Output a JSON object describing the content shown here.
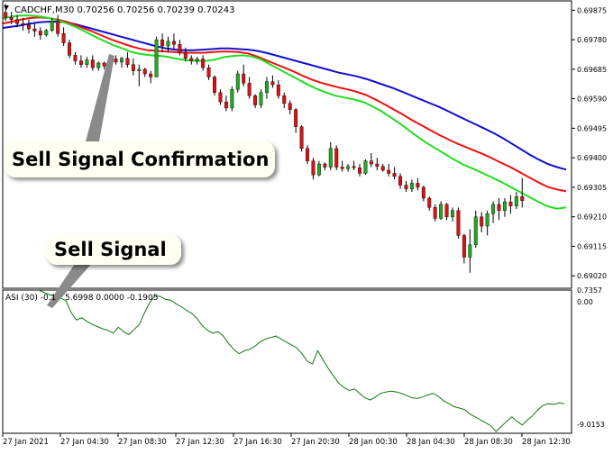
{
  "chart_data": {
    "type": "candlestick",
    "symbol_header": "CADCHF,M30  0.70256 0.70256 0.70239 0.70243",
    "price_axis": {
      "ticks": [
        "0.69875",
        "0.69780",
        "0.69685",
        "0.69590",
        "0.69495",
        "0.69400",
        "0.69305",
        "0.69210",
        "0.69115",
        "0.69020"
      ],
      "range": [
        0.6898,
        0.69905
      ]
    },
    "time_labels": [
      "27 Jan 2021",
      "27 Jan 04:30",
      "27 Jan 08:30",
      "27 Jan 12:30",
      "27 Jan 16:30",
      "27 Jan 20:30",
      "28 Jan 00:30",
      "28 Jan 04:30",
      "28 Jan 08:30",
      "28 Jan 12:30"
    ],
    "colors": {
      "bull": "#22aa22",
      "bear": "#dd1111",
      "wick": "#000000",
      "ma_fast": "#22dd22",
      "ma_mid": "#ee1111",
      "ma_slow": "#1111cc",
      "asi": "#117711",
      "grid": "#e6e6e6",
      "frame": "#000000"
    },
    "candles": [
      [
        0.69868,
        0.69895,
        0.6984,
        0.69852
      ],
      [
        0.69852,
        0.6987,
        0.6983,
        0.69845
      ],
      [
        0.69845,
        0.6986,
        0.6982,
        0.69832
      ],
      [
        0.69832,
        0.6985,
        0.6981,
        0.69828
      ],
      [
        0.69828,
        0.69845,
        0.698,
        0.69815
      ],
      [
        0.69815,
        0.69832,
        0.6979,
        0.69808
      ],
      [
        0.69808,
        0.6982,
        0.6978,
        0.69795
      ],
      [
        0.69795,
        0.69815,
        0.6979,
        0.6981
      ],
      [
        0.6981,
        0.6985,
        0.69805,
        0.6984
      ],
      [
        0.6984,
        0.6986,
        0.6979,
        0.698
      ],
      [
        0.698,
        0.6982,
        0.6976,
        0.6977
      ],
      [
        0.6977,
        0.6978,
        0.6972,
        0.6973
      ],
      [
        0.6973,
        0.6974,
        0.697,
        0.69712
      ],
      [
        0.69712,
        0.6973,
        0.6969,
        0.697
      ],
      [
        0.697,
        0.69725,
        0.6969,
        0.69715
      ],
      [
        0.69715,
        0.6973,
        0.6968,
        0.6969
      ],
      [
        0.6969,
        0.6971,
        0.6968,
        0.69705
      ],
      [
        0.69705,
        0.6971,
        0.69685,
        0.69695
      ],
      [
        0.69695,
        0.69725,
        0.6969,
        0.69718
      ],
      [
        0.69718,
        0.6973,
        0.697,
        0.69708
      ],
      [
        0.69708,
        0.69725,
        0.6969,
        0.6972
      ],
      [
        0.6972,
        0.6974,
        0.6969,
        0.697
      ],
      [
        0.697,
        0.6972,
        0.69665,
        0.6968
      ],
      [
        0.6968,
        0.697,
        0.6963,
        0.69685
      ],
      [
        0.69685,
        0.6969,
        0.6966,
        0.6967
      ],
      [
        0.6967,
        0.6968,
        0.6964,
        0.6966
      ],
      [
        0.6966,
        0.6979,
        0.6966,
        0.6978
      ],
      [
        0.6978,
        0.698,
        0.6974,
        0.6976
      ],
      [
        0.6976,
        0.6979,
        0.6974,
        0.69775
      ],
      [
        0.69775,
        0.698,
        0.6975,
        0.69765
      ],
      [
        0.69765,
        0.6978,
        0.6973,
        0.6974
      ],
      [
        0.6974,
        0.69755,
        0.6971,
        0.6972
      ],
      [
        0.6972,
        0.6973,
        0.697,
        0.69712
      ],
      [
        0.69712,
        0.69725,
        0.697,
        0.69718
      ],
      [
        0.69718,
        0.6973,
        0.6968,
        0.6969
      ],
      [
        0.6969,
        0.697,
        0.6965,
        0.6966
      ],
      [
        0.6966,
        0.69665,
        0.696,
        0.6961
      ],
      [
        0.6961,
        0.6962,
        0.6957,
        0.6958
      ],
      [
        0.6958,
        0.696,
        0.6955,
        0.6956
      ],
      [
        0.6956,
        0.6963,
        0.6955,
        0.6962
      ],
      [
        0.6962,
        0.6968,
        0.6961,
        0.6967
      ],
      [
        0.6967,
        0.697,
        0.6963,
        0.6964
      ],
      [
        0.6964,
        0.6966,
        0.6959,
        0.696
      ],
      [
        0.696,
        0.69605,
        0.6956,
        0.6957
      ],
      [
        0.6957,
        0.6962,
        0.6956,
        0.6961
      ],
      [
        0.6961,
        0.6966,
        0.6959,
        0.69645
      ],
      [
        0.69645,
        0.69665,
        0.69625,
        0.69635
      ],
      [
        0.69635,
        0.6965,
        0.6959,
        0.696
      ],
      [
        0.696,
        0.6961,
        0.6956,
        0.69575
      ],
      [
        0.69575,
        0.69585,
        0.6954,
        0.69555
      ],
      [
        0.69555,
        0.6956,
        0.6948,
        0.695
      ],
      [
        0.695,
        0.69505,
        0.6942,
        0.6943
      ],
      [
        0.6943,
        0.6944,
        0.6938,
        0.6939
      ],
      [
        0.6939,
        0.694,
        0.6933,
        0.69345
      ],
      [
        0.69345,
        0.6939,
        0.6934,
        0.6938
      ],
      [
        0.6938,
        0.69385,
        0.6936,
        0.6937
      ],
      [
        0.6937,
        0.6945,
        0.6936,
        0.6943
      ],
      [
        0.6943,
        0.6944,
        0.6936,
        0.6937
      ],
      [
        0.6937,
        0.6939,
        0.69355,
        0.69365
      ],
      [
        0.69365,
        0.6938,
        0.69355,
        0.69372
      ],
      [
        0.69372,
        0.6939,
        0.6936,
        0.69368
      ],
      [
        0.69368,
        0.6938,
        0.6934,
        0.6935
      ],
      [
        0.6935,
        0.69395,
        0.69345,
        0.6939
      ],
      [
        0.6939,
        0.69415,
        0.6937,
        0.6938
      ],
      [
        0.6938,
        0.694,
        0.6936,
        0.69372
      ],
      [
        0.69372,
        0.6938,
        0.69355,
        0.6936
      ],
      [
        0.6936,
        0.6938,
        0.6934,
        0.6935
      ],
      [
        0.6935,
        0.6937,
        0.6933,
        0.6934
      ],
      [
        0.6934,
        0.6935,
        0.693,
        0.69312
      ],
      [
        0.69312,
        0.69325,
        0.6929,
        0.693
      ],
      [
        0.693,
        0.6933,
        0.6929,
        0.69318
      ],
      [
        0.69318,
        0.69335,
        0.69295,
        0.69305
      ],
      [
        0.69305,
        0.6931,
        0.6926,
        0.6927
      ],
      [
        0.6927,
        0.69275,
        0.6923,
        0.6924
      ],
      [
        0.6924,
        0.6925,
        0.69195,
        0.69205
      ],
      [
        0.69205,
        0.6926,
        0.692,
        0.6925
      ],
      [
        0.6925,
        0.69255,
        0.692,
        0.6921
      ],
      [
        0.6921,
        0.6924,
        0.69195,
        0.6923
      ],
      [
        0.6923,
        0.6924,
        0.6914,
        0.6915
      ],
      [
        0.6915,
        0.69155,
        0.6906,
        0.6908
      ],
      [
        0.6908,
        0.6917,
        0.6903,
        0.6912
      ],
      [
        0.6912,
        0.6923,
        0.6911,
        0.6921
      ],
      [
        0.6921,
        0.69225,
        0.6916,
        0.6918
      ],
      [
        0.6918,
        0.6923,
        0.6915,
        0.6922
      ],
      [
        0.6922,
        0.6926,
        0.6919,
        0.6925
      ],
      [
        0.6925,
        0.6927,
        0.692,
        0.6923
      ],
      [
        0.6923,
        0.6927,
        0.6921,
        0.69258
      ],
      [
        0.69258,
        0.6928,
        0.6922,
        0.69245
      ],
      [
        0.69245,
        0.6929,
        0.69235,
        0.69275
      ],
      [
        0.69275,
        0.69335,
        0.6924,
        0.69262
      ]
    ],
    "ma_fast": [
      0.69848,
      0.69855,
      0.69858,
      0.69858,
      0.69855,
      0.6985,
      0.69842,
      0.69832,
      0.6982,
      0.69805,
      0.6979,
      0.69776,
      0.69762,
      0.69752,
      0.6974,
      0.69734,
      0.6973,
      0.69728,
      0.69724,
      0.69718,
      0.69714,
      0.69712,
      0.69712,
      0.69716,
      0.69724,
      0.69728,
      0.6973,
      0.69726,
      0.69716,
      0.697,
      0.69684,
      0.69668,
      0.69652,
      0.69636,
      0.69622,
      0.6961,
      0.696,
      0.69594,
      0.69588,
      0.6958,
      0.69566,
      0.6955,
      0.6953,
      0.6951,
      0.69488,
      0.69466,
      0.69446,
      0.69428,
      0.6941,
      0.69392,
      0.69376,
      0.69364,
      0.6935,
      0.69336,
      0.69322,
      0.69306,
      0.6929,
      0.69274,
      0.69258,
      0.69244,
      0.69236,
      0.6924
    ],
    "ma_mid": [
      0.69832,
      0.69838,
      0.69845,
      0.6985,
      0.69852,
      0.6985,
      0.69845,
      0.69838,
      0.69828,
      0.69816,
      0.69805,
      0.69792,
      0.6978,
      0.6977,
      0.6976,
      0.69752,
      0.69746,
      0.69744,
      0.69742,
      0.6974,
      0.69738,
      0.69738,
      0.69738,
      0.6974,
      0.69742,
      0.69742,
      0.6974,
      0.69736,
      0.69726,
      0.69714,
      0.69702,
      0.6969,
      0.69678,
      0.69664,
      0.69652,
      0.69642,
      0.69634,
      0.69626,
      0.6962,
      0.69612,
      0.69602,
      0.69588,
      0.69572,
      0.69556,
      0.6954,
      0.69522,
      0.69506,
      0.6949,
      0.69474,
      0.6946,
      0.69446,
      0.69434,
      0.69422,
      0.6941,
      0.69396,
      0.69382,
      0.69368,
      0.69352,
      0.69336,
      0.6932,
      0.69306,
      0.69298,
      0.69292
    ],
    "ma_slow": [
      0.69818,
      0.69822,
      0.69826,
      0.69832,
      0.69836,
      0.69838,
      0.69838,
      0.69836,
      0.6983,
      0.69822,
      0.69814,
      0.69806,
      0.69798,
      0.6979,
      0.69782,
      0.69774,
      0.69766,
      0.69758,
      0.69752,
      0.69748,
      0.69746,
      0.69746,
      0.69748,
      0.6975,
      0.69752,
      0.69752,
      0.6975,
      0.69748,
      0.69744,
      0.69738,
      0.6973,
      0.69722,
      0.69714,
      0.69706,
      0.69698,
      0.6969,
      0.69682,
      0.69674,
      0.69668,
      0.69662,
      0.69654,
      0.69644,
      0.69634,
      0.69624,
      0.69612,
      0.696,
      0.69588,
      0.69576,
      0.69564,
      0.6955,
      0.69536,
      0.69522,
      0.69508,
      0.69494,
      0.6948,
      0.69464,
      0.69446,
      0.69428,
      0.6941,
      0.69394,
      0.6938,
      0.6937,
      0.69362
    ],
    "asi_header": "ASI (30) -0.1",
    "asi_header_values": "5.6998 0.0000 -0.1905",
    "asi_axis": {
      "top": "0.7357",
      "zero": "0.00",
      "bottom": "-9.0153",
      "range": [
        -9.0153,
        0.7357
      ]
    },
    "asi": [
      0.7,
      0.55,
      0.4,
      0.3,
      0.2,
      0.0,
      -0.8,
      -1.3,
      -1.15,
      -1.4,
      -1.6,
      -1.75,
      -1.9,
      -2.0,
      -2.2,
      -1.8,
      -2.1,
      -2.3,
      -1.95,
      -1.6,
      -0.8,
      -0.1,
      0.35,
      0.3,
      0.1,
      0.05,
      -0.2,
      -0.4,
      -0.65,
      -0.85,
      -1.2,
      -1.7,
      -2.0,
      -2.2,
      -2.1,
      -2.4,
      -2.9,
      -3.3,
      -3.6,
      -3.4,
      -3.3,
      -3.1,
      -2.8,
      -2.6,
      -2.5,
      -2.4,
      -2.6,
      -2.8,
      -3.0,
      -3.2,
      -3.6,
      -4.1,
      -4.3,
      -3.4,
      -4.0,
      -4.6,
      -5.1,
      -5.6,
      -5.9,
      -6.1,
      -6.0,
      -6.3,
      -6.6,
      -6.75,
      -6.55,
      -6.3,
      -6.2,
      -6.15,
      -6.2,
      -6.3,
      -6.45,
      -6.6,
      -6.65,
      -6.55,
      -6.4,
      -6.3,
      -6.5,
      -6.8,
      -7.0,
      -7.2,
      -7.3,
      -7.4,
      -7.7,
      -7.9,
      -8.1,
      -8.3,
      -8.5,
      -8.9,
      -8.55,
      -8.2,
      -7.9,
      -8.2,
      -8.45,
      -8.1,
      -7.8,
      -7.4,
      -7.1,
      -7.0,
      -7.05,
      -6.95,
      -7.0
    ]
  },
  "callouts": {
    "confirmation_label": "Sell Signal Confirmation",
    "signal_label": "Sell Signal"
  }
}
